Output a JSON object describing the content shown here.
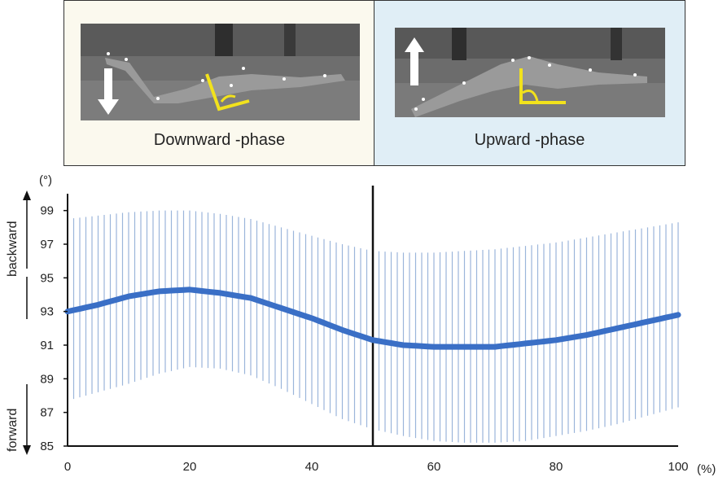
{
  "panels": {
    "down": {
      "label": "Downward -phase",
      "arrow": "down-arrow-icon"
    },
    "up": {
      "label": "Upward -phase",
      "arrow": "up-arrow-icon"
    }
  },
  "colors": {
    "mean_line": "#3a6fc6",
    "error_bars": "#9bb5da",
    "angle_marker": "#f2e21c",
    "down_panel_bg": "#fbf9ee",
    "up_panel_bg": "#e0eef6"
  },
  "chart_data": {
    "type": "line",
    "xlabel": "",
    "ylabel": "",
    "x_unit": "(%)",
    "y_unit": "(°)",
    "xlim": [
      0,
      100
    ],
    "ylim": [
      85,
      100
    ],
    "x_ticks": [
      0,
      20,
      40,
      60,
      80,
      100
    ],
    "y_ticks": [
      85,
      87,
      89,
      91,
      93,
      95,
      97,
      99
    ],
    "direction_labels": {
      "top": "backward",
      "bottom": "forward"
    },
    "phase_divider_x": 50,
    "error_bars": "±SD at each 1% step",
    "series": [
      {
        "mean": [
          [
            0,
            93.0
          ],
          [
            5,
            93.4
          ],
          [
            10,
            93.9
          ],
          [
            15,
            94.2
          ],
          [
            20,
            94.3
          ],
          [
            25,
            94.1
          ],
          [
            30,
            93.8
          ],
          [
            35,
            93.2
          ],
          [
            40,
            92.6
          ],
          [
            45,
            91.9
          ],
          [
            50,
            91.3
          ],
          [
            55,
            91.0
          ],
          [
            60,
            90.9
          ],
          [
            65,
            90.9
          ],
          [
            70,
            90.9
          ],
          [
            75,
            91.1
          ],
          [
            80,
            91.3
          ],
          [
            85,
            91.6
          ],
          [
            90,
            92.0
          ],
          [
            95,
            92.4
          ],
          [
            100,
            92.8
          ]
        ],
        "upper": [
          [
            0,
            98.5
          ],
          [
            5,
            98.7
          ],
          [
            10,
            98.9
          ],
          [
            15,
            99.0
          ],
          [
            20,
            99.0
          ],
          [
            25,
            98.8
          ],
          [
            30,
            98.5
          ],
          [
            35,
            98.0
          ],
          [
            40,
            97.5
          ],
          [
            45,
            97.0
          ],
          [
            50,
            96.6
          ],
          [
            55,
            96.5
          ],
          [
            60,
            96.5
          ],
          [
            65,
            96.6
          ],
          [
            70,
            96.7
          ],
          [
            75,
            96.9
          ],
          [
            80,
            97.1
          ],
          [
            85,
            97.4
          ],
          [
            90,
            97.7
          ],
          [
            95,
            98.0
          ],
          [
            100,
            98.3
          ]
        ],
        "lower": [
          [
            0,
            87.7
          ],
          [
            5,
            88.2
          ],
          [
            10,
            88.7
          ],
          [
            15,
            89.3
          ],
          [
            20,
            89.7
          ],
          [
            25,
            89.6
          ],
          [
            30,
            89.2
          ],
          [
            35,
            88.4
          ],
          [
            40,
            87.5
          ],
          [
            45,
            86.6
          ],
          [
            50,
            86.0
          ],
          [
            55,
            85.6
          ],
          [
            60,
            85.3
          ],
          [
            65,
            85.2
          ],
          [
            70,
            85.2
          ],
          [
            75,
            85.3
          ],
          [
            80,
            85.6
          ],
          [
            85,
            85.9
          ],
          [
            90,
            86.3
          ],
          [
            95,
            86.8
          ],
          [
            100,
            87.3
          ]
        ]
      }
    ]
  }
}
